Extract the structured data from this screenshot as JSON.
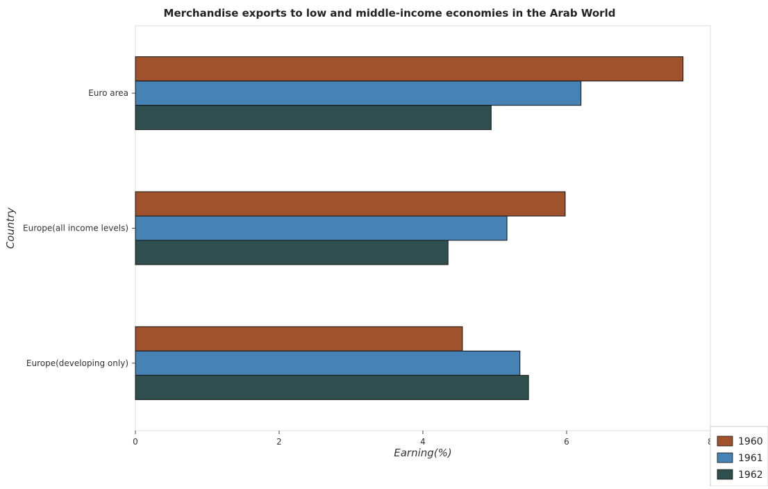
{
  "chart_data": {
    "type": "bar",
    "orientation": "horizontal",
    "title": "Merchandise exports to low and middle-income economies in the Arab World",
    "xlabel": "Earning(%)",
    "ylabel": "Country",
    "categories": [
      "Euro area",
      "Europe(all income levels)",
      "Europe(developing only)"
    ],
    "series": [
      {
        "name": "1960",
        "color": "#a0522d",
        "values": [
          7.62,
          5.98,
          4.55
        ]
      },
      {
        "name": "1961",
        "color": "#4682b4",
        "values": [
          6.2,
          5.17,
          5.35
        ]
      },
      {
        "name": "1962",
        "color": "#2f4f4f",
        "values": [
          4.95,
          4.35,
          5.47
        ]
      }
    ],
    "xlim": [
      0,
      8
    ],
    "xticks": [
      "0",
      "2",
      "4",
      "6",
      "8"
    ],
    "grid": false,
    "legend_position": "bottom-right"
  }
}
